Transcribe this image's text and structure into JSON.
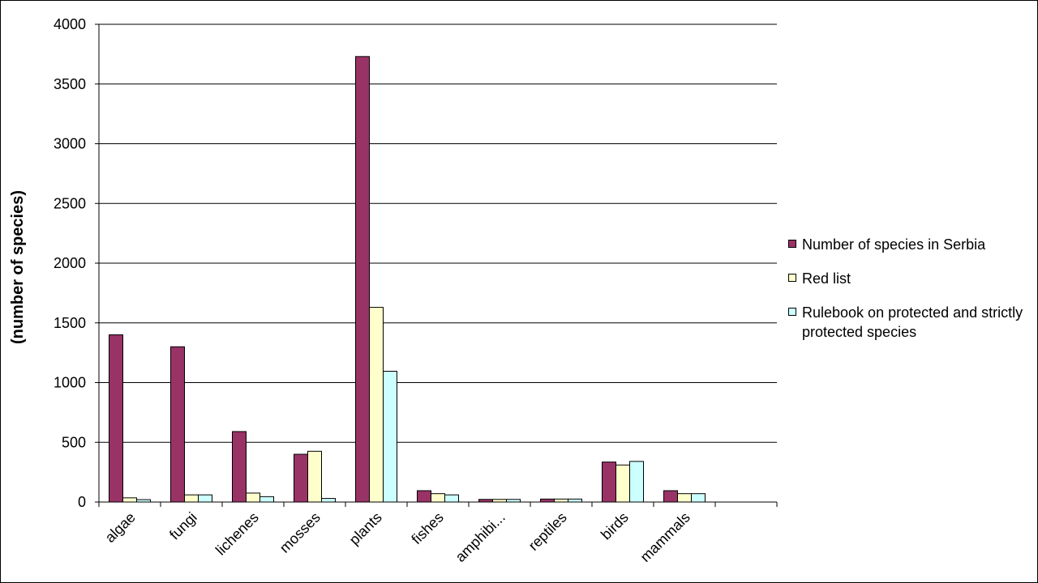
{
  "chart_data": {
    "type": "bar",
    "title": "",
    "xlabel": "",
    "ylabel": "(number of species)",
    "ylim": [
      0,
      4000
    ],
    "yticks": [
      "0",
      "500",
      "1000",
      "1500",
      "2000",
      "2500",
      "3000",
      "3500",
      "4000"
    ],
    "grid": true,
    "legend_position": "right",
    "categories": [
      "algae",
      "fungi",
      "lichenes",
      "mosses",
      "plants",
      "fishes",
      "amphibi...",
      "reptiles",
      "birds",
      "mammals",
      ""
    ],
    "series": [
      {
        "name": "Number of species in Serbia",
        "color": "#993366",
        "values": [
          1400,
          1300,
          590,
          400,
          3730,
          95,
          22,
          25,
          335,
          95,
          null
        ]
      },
      {
        "name": "Red list",
        "color": "#FFFFCC",
        "values": [
          35,
          60,
          75,
          425,
          1630,
          70,
          22,
          25,
          310,
          70,
          null
        ]
      },
      {
        "name": "Rulebook on protected and strictly protected species",
        "color": "#CCFFFF",
        "values": [
          20,
          60,
          45,
          30,
          1095,
          60,
          22,
          25,
          340,
          70,
          null
        ]
      }
    ]
  },
  "legend": {
    "items": [
      {
        "label": "Number of species in Serbia",
        "color": "#993366"
      },
      {
        "label": "Red list",
        "color": "#FFFFCC"
      },
      {
        "label": "Rulebook on protected and strictly protected species",
        "color": "#CCFFFF"
      }
    ]
  }
}
